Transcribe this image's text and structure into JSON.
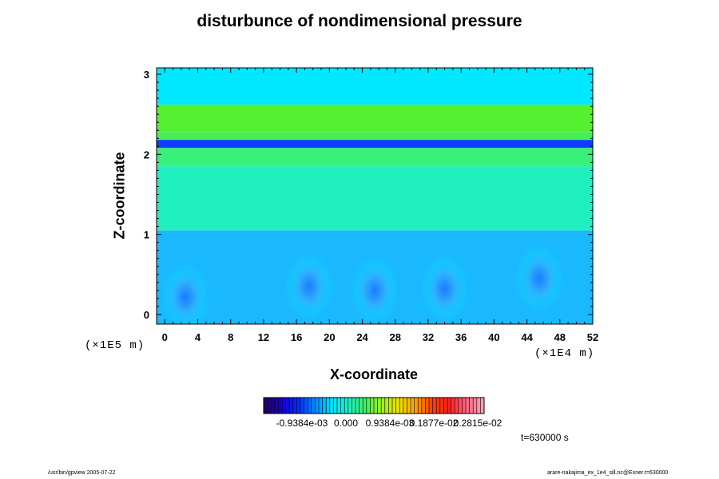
{
  "chart_data": {
    "type": "heatmap",
    "title": "disturbunce of nondimensional pressure",
    "xlabel": "X-coordinate",
    "ylabel": "Z-coordinate",
    "x_scale_label": "(×1E4 m)",
    "y_scale_label": "(×1E5 m)",
    "x_ticks": [
      "0",
      "4",
      "8",
      "12",
      "16",
      "20",
      "24",
      "28",
      "32",
      "36",
      "40",
      "44",
      "48",
      "52"
    ],
    "y_ticks": [
      "0",
      "1",
      "2",
      "3"
    ],
    "xlim": [
      -1,
      52
    ],
    "ylim": [
      -0.12,
      3.08
    ],
    "colorbar": {
      "labels": [
        "-0.9384e-03",
        "0.000",
        "0.9384e-03",
        "0.1877e-02",
        "0.2815e-02"
      ],
      "colors": [
        "#220066",
        "#1a00cc",
        "#0030ff",
        "#0090ff",
        "#00e0ff",
        "#20f0c0",
        "#40f060",
        "#a0f020",
        "#f0e000",
        "#ffa000",
        "#ff4000",
        "#ff2020",
        "#ff6080",
        "#ffa0b0"
      ]
    },
    "bands": [
      {
        "z_top": 3.08,
        "z_bottom": 2.62,
        "level": 0.1
      },
      {
        "z_top": 2.62,
        "z_bottom": 2.28,
        "level": 0.75
      },
      {
        "z_top": 2.28,
        "z_bottom": 2.18,
        "level": 0.6
      },
      {
        "z_top": 2.18,
        "z_bottom": 2.08,
        "level": -0.7
      },
      {
        "z_top": 2.08,
        "z_bottom": 1.85,
        "level": 0.55
      },
      {
        "z_top": 1.85,
        "z_bottom": 1.05,
        "level": 0.3
      },
      {
        "z_top": 1.05,
        "z_bottom": -0.12,
        "level": -0.05
      }
    ],
    "minima": [
      {
        "x": 17.5,
        "z": 0.35
      },
      {
        "x": 25.5,
        "z": 0.3
      },
      {
        "x": 34.0,
        "z": 0.32
      },
      {
        "x": 2.5,
        "z": 0.22
      },
      {
        "x": 45.5,
        "z": 0.45
      }
    ],
    "time_label": "t=630000 s"
  },
  "footer": {
    "left": "/usr/bin/gpview 2005-07-22",
    "right": "arare-nakajima_ex_1e4_sill.nc@Exner.t=630000"
  }
}
